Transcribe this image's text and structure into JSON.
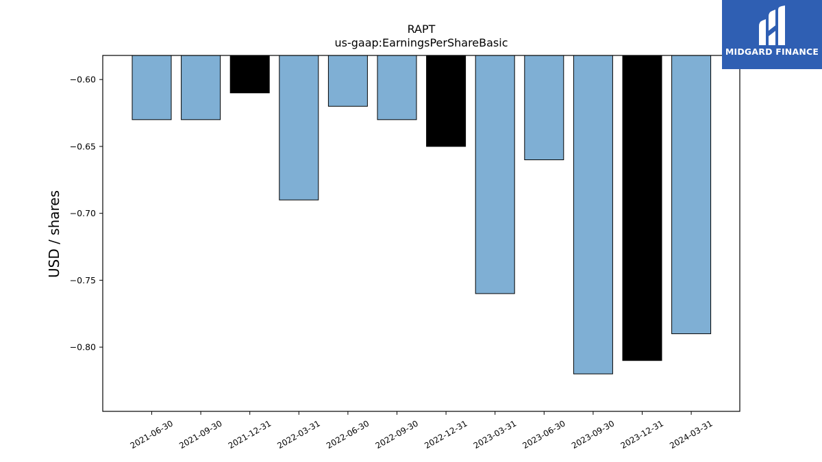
{
  "chart_data": {
    "type": "bar",
    "title": "RAPT",
    "subtitle": "us-gaap:EarningsPerShareBasic",
    "xlabel": "",
    "ylabel": "USD / shares",
    "categories": [
      "2021-06-30",
      "2021-09-30",
      "2021-12-31",
      "2022-03-31",
      "2022-06-30",
      "2022-09-30",
      "2022-12-31",
      "2023-03-31",
      "2023-06-30",
      "2023-09-30",
      "2023-12-31",
      "2024-03-31"
    ],
    "values": [
      -0.63,
      -0.63,
      -0.61,
      -0.69,
      -0.62,
      -0.63,
      -0.65,
      -0.76,
      -0.66,
      -0.82,
      -0.81,
      -0.79
    ],
    "bar_colors": [
      "#7fafd4",
      "#7fafd4",
      "#000000",
      "#7fafd4",
      "#7fafd4",
      "#7fafd4",
      "#000000",
      "#7fafd4",
      "#7fafd4",
      "#7fafd4",
      "#000000",
      "#7fafd4"
    ],
    "ylim": [
      -0.848,
      -0.582
    ],
    "yticks": [
      -0.6,
      -0.65,
      -0.7,
      -0.75,
      -0.8
    ],
    "ytick_labels": [
      "−0.60",
      "−0.65",
      "−0.70",
      "−0.75",
      "−0.80"
    ],
    "grid": false,
    "legend": "none"
  },
  "logo": {
    "text": "MIDGARD FINANCE",
    "icon": "midgard-logo-icon",
    "color": "#2f5fb3"
  }
}
